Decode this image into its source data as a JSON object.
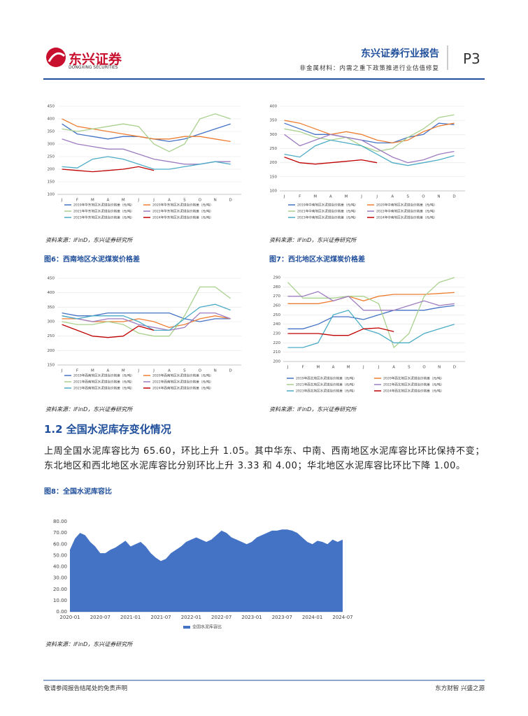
{
  "header": {
    "brand": "东兴证券",
    "brand_en": "DONGXING SECURITIES",
    "report": "东兴证券行业报告",
    "page": "P3",
    "subtitle": "非金属材料：内需之重下政策推进行业估值修复"
  },
  "section": {
    "heading": "1.2 全国水泥库存变化情况",
    "paragraph": "上周全国水泥库容比为 65.60，环比上升 1.05。其中华东、中南、西南地区水泥库容比环比保持不变；东北地区和西北地区水泥库容比分别环比上升 3.33 和 4.00；华北地区水泥库容比环比下降 1.00。"
  },
  "footer": {
    "left": "敬请参阅报告结尾处的免责声明",
    "right": "东方财智 兴盛之源"
  },
  "chart_data": [
    {
      "type": "line",
      "source": "资料来源：iFinD，东兴证券研究所",
      "categories": [
        "J",
        "F",
        "M",
        "A",
        "M",
        "J",
        "J",
        "A",
        "S",
        "O",
        "N",
        "D"
      ],
      "ylim": [
        100,
        450
      ],
      "yticks": [
        100,
        150,
        200,
        250,
        300,
        350,
        400,
        450
      ],
      "series": [
        {
          "name": "2019年华东地区水泥煤炭价格差（元/吨）",
          "color": "#4472c4",
          "values": [
            380,
            340,
            330,
            320,
            330,
            330,
            320,
            310,
            320,
            340,
            360,
            380
          ]
        },
        {
          "name": "2020年华东地区水泥煤炭价格差（元/吨）",
          "color": "#ed7d31",
          "values": [
            400,
            370,
            360,
            350,
            340,
            330,
            320,
            320,
            330,
            330,
            320,
            310
          ]
        },
        {
          "name": "2021年华东地区水泥煤炭价格差（元/吨）",
          "color": "#a9d18e",
          "values": [
            360,
            350,
            360,
            370,
            380,
            370,
            300,
            270,
            300,
            400,
            420,
            400
          ]
        },
        {
          "name": "2022年华东地区水泥煤炭价格差（元/吨）",
          "color": "#9e7cc1",
          "values": [
            320,
            300,
            290,
            280,
            280,
            260,
            240,
            230,
            220,
            220,
            230,
            230
          ]
        },
        {
          "name": "2023年华东地区水泥煤炭价格差（元/吨）",
          "color": "#4bacc6",
          "values": [
            210,
            205,
            240,
            250,
            240,
            220,
            200,
            200,
            210,
            220,
            230,
            220
          ]
        },
        {
          "name": "2024年华东地区水泥煤炭价格差（元/吨）",
          "color": "#c00000",
          "values": [
            200,
            195,
            190,
            195,
            200,
            210,
            195,
            null,
            null,
            null,
            null,
            null
          ]
        }
      ]
    },
    {
      "type": "line",
      "source": "资料来源：iFinD，东兴证券研究所",
      "categories": [
        "J",
        "F",
        "M",
        "A",
        "M",
        "J",
        "J",
        "A",
        "S",
        "O",
        "N",
        "D"
      ],
      "ylim": [
        100,
        400
      ],
      "yticks": [
        100,
        150,
        200,
        250,
        300,
        350,
        400
      ],
      "series": [
        {
          "name": "2019年中南地区水泥煤炭价格差（元/吨）",
          "color": "#4472c4",
          "values": [
            340,
            320,
            300,
            300,
            290,
            280,
            270,
            270,
            290,
            300,
            340,
            335
          ]
        },
        {
          "name": "2020年中南地区水泥煤炭价格差（元/吨）",
          "color": "#ed7d31",
          "values": [
            350,
            340,
            320,
            300,
            310,
            300,
            280,
            270,
            280,
            310,
            330,
            340
          ]
        },
        {
          "name": "2021年中南地区水泥煤炭价格差（元/吨）",
          "color": "#a9d18e",
          "values": [
            320,
            310,
            290,
            280,
            290,
            260,
            240,
            250,
            290,
            320,
            360,
            370
          ]
        },
        {
          "name": "2022年中南地区水泥煤炭价格差（元/吨）",
          "color": "#9e7cc1",
          "values": [
            300,
            260,
            280,
            300,
            290,
            280,
            250,
            220,
            200,
            210,
            230,
            240
          ]
        },
        {
          "name": "2023年中南地区水泥煤炭价格差（元/吨）",
          "color": "#4bacc6",
          "values": [
            230,
            220,
            260,
            280,
            270,
            260,
            230,
            200,
            190,
            200,
            210,
            225
          ]
        },
        {
          "name": "2024年中南地区水泥煤炭价格差（元/吨）",
          "color": "#c00000",
          "values": [
            220,
            200,
            195,
            200,
            205,
            210,
            200,
            null,
            null,
            null,
            null,
            null
          ]
        }
      ]
    },
    {
      "type": "line",
      "title": "图6：西南地区水泥煤炭价格差",
      "source": "资料来源：iFinD，东兴证券研究所",
      "categories": [
        "J",
        "F",
        "M",
        "A",
        "M",
        "J",
        "J",
        "A",
        "S",
        "O",
        "N",
        "D"
      ],
      "ylim": [
        150,
        450
      ],
      "yticks": [
        150,
        200,
        250,
        300,
        350,
        400,
        450
      ],
      "series": [
        {
          "name": "2019年西南地区水泥煤炭价格差（元/吨）",
          "color": "#4472c4",
          "values": [
            330,
            320,
            320,
            330,
            330,
            330,
            330,
            330,
            310,
            300,
            310,
            310
          ]
        },
        {
          "name": "2020年西南地区水泥煤炭价格差（元/吨）",
          "color": "#ed7d31",
          "values": [
            310,
            310,
            300,
            300,
            300,
            310,
            300,
            280,
            290,
            310,
            320,
            310
          ]
        },
        {
          "name": "2021年西南地区水泥煤炭价格差（元/吨）",
          "color": "#a9d18e",
          "values": [
            300,
            290,
            290,
            300,
            290,
            260,
            250,
            250,
            320,
            420,
            420,
            380
          ]
        },
        {
          "name": "2022年西南地区水泥煤炭价格差（元/吨）",
          "color": "#9e7cc1",
          "values": [
            320,
            310,
            300,
            310,
            310,
            290,
            280,
            270,
            280,
            330,
            330,
            310
          ]
        },
        {
          "name": "2023年西南地区水泥煤炭价格差（元/吨）",
          "color": "#4bacc6",
          "values": [
            320,
            310,
            320,
            320,
            320,
            300,
            270,
            270,
            310,
            350,
            360,
            340
          ]
        },
        {
          "name": "2024年西南地区水泥煤炭价格差（元/吨）",
          "color": "#c00000",
          "values": [
            290,
            270,
            250,
            245,
            250,
            285,
            270,
            null,
            null,
            null,
            null,
            null
          ]
        }
      ]
    },
    {
      "type": "line",
      "title": "图7：西北地区水泥煤炭价格差",
      "source": "资料来源：iFinD，东兴证券研究所",
      "categories": [
        "J",
        "F",
        "M",
        "A",
        "M",
        "J",
        "J",
        "A",
        "S",
        "O",
        "N",
        "D"
      ],
      "ylim": [
        200,
        290
      ],
      "yticks": [
        200,
        210,
        220,
        230,
        240,
        250,
        260,
        270,
        280,
        290
      ],
      "series": [
        {
          "name": "2019年西北地区水泥煤炭价格差（元/吨）",
          "color": "#4472c4",
          "values": [
            235,
            235,
            240,
            248,
            248,
            245,
            250,
            255,
            255,
            255,
            258,
            260
          ]
        },
        {
          "name": "2020年西北地区水泥煤炭价格差（元/吨）",
          "color": "#ed7d31",
          "values": [
            262,
            262,
            262,
            265,
            270,
            265,
            270,
            272,
            272,
            272,
            273,
            274
          ]
        },
        {
          "name": "2021年西北地区水泥煤炭价格差（元/吨）",
          "color": "#a9d18e",
          "values": [
            285,
            268,
            268,
            268,
            270,
            270,
            262,
            215,
            230,
            270,
            285,
            290
          ]
        },
        {
          "name": "2022年西北地区水泥煤炭价格差（元/吨）",
          "color": "#9e7cc1",
          "values": [
            270,
            270,
            275,
            265,
            270,
            255,
            255,
            255,
            260,
            265,
            260,
            262
          ]
        },
        {
          "name": "2023年西北地区水泥煤炭价格差（元/吨）",
          "color": "#4bacc6",
          "values": [
            215,
            215,
            220,
            250,
            255,
            235,
            230,
            220,
            220,
            230,
            235,
            240
          ]
        },
        {
          "name": "2024年西北地区水泥煤炭价格差（元/吨）",
          "color": "#c00000",
          "values": [
            230,
            230,
            230,
            228,
            228,
            235,
            236,
            232,
            null,
            null,
            null,
            null
          ]
        }
      ]
    },
    {
      "type": "area",
      "title": "图8：全国水泥库容比",
      "source": "资料来源：iFinD，东兴证券研究所",
      "categories": [
        "2020-01",
        null,
        null,
        null,
        null,
        null,
        "2020-07",
        null,
        null,
        null,
        null,
        null,
        "2021-01",
        null,
        null,
        null,
        null,
        null,
        "2021-07",
        null,
        null,
        null,
        null,
        null,
        "2022-01",
        null,
        null,
        null,
        null,
        null,
        "2022-07",
        null,
        null,
        null,
        null,
        null,
        "2023-01",
        null,
        null,
        null,
        null,
        null,
        "2023-07",
        null,
        null,
        null,
        null,
        null,
        "2024-01",
        null,
        null,
        null,
        null,
        null,
        "2024-07"
      ],
      "ylim": [
        0,
        80
      ],
      "yticks": [
        {
          "value": 0,
          "label": "0.00"
        },
        {
          "value": 10,
          "label": "10.00"
        },
        {
          "value": 20,
          "label": "20.00"
        },
        {
          "value": 30,
          "label": "30.00"
        },
        {
          "value": 40,
          "label": "40.00"
        },
        {
          "value": 50,
          "label": "50.00"
        },
        {
          "value": 60,
          "label": "60.00"
        },
        {
          "value": 70,
          "label": "70.00"
        },
        {
          "value": 80,
          "label": "80.00"
        }
      ],
      "series": [
        {
          "name": "全国水泥库容比",
          "color": "#4472c4",
          "values": [
            55,
            65,
            70,
            68,
            62,
            58,
            52,
            52,
            55,
            57,
            60,
            63,
            58,
            60,
            62,
            58,
            52,
            48,
            45,
            47,
            52,
            55,
            58,
            62,
            64,
            66,
            64,
            62,
            64,
            68,
            72,
            70,
            66,
            64,
            62,
            60,
            62,
            66,
            68,
            70,
            72,
            72,
            73,
            73,
            72,
            70,
            66,
            62,
            60,
            63,
            62,
            60,
            64,
            62,
            64
          ]
        }
      ]
    }
  ]
}
